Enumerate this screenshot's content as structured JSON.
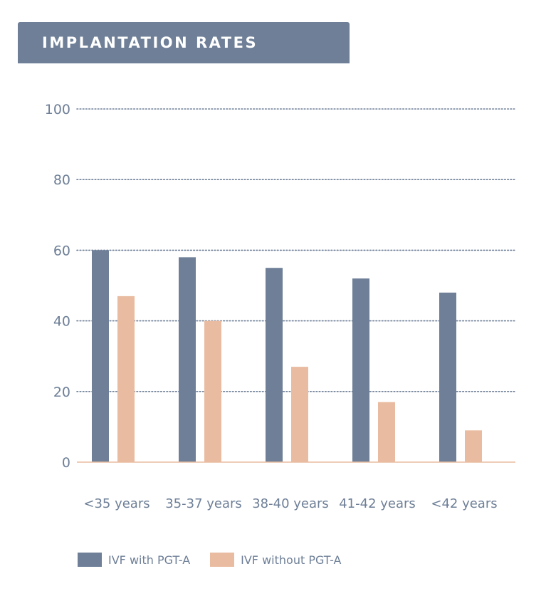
{
  "title": "IMPLANTATION RATES",
  "colors": {
    "with": "#6e7f97",
    "without": "#e9bca1",
    "grid": "#6e7f97",
    "baseline": "#e9bca1",
    "text": "#6e7f97"
  },
  "chart_data": {
    "type": "bar",
    "title": "IMPLANTATION RATES",
    "xlabel": "",
    "ylabel": "",
    "ylim": [
      0,
      100
    ],
    "yticks": [
      0,
      20,
      40,
      60,
      80,
      100
    ],
    "grid": true,
    "legend_position": "bottom-left",
    "categories": [
      "<35 years",
      "35-37 years",
      "38-40 years",
      "41-42 years",
      "<42 years"
    ],
    "series": [
      {
        "name": "IVF with PGT-A",
        "color": "#6e7f97",
        "values": [
          60,
          58,
          55,
          52,
          48
        ]
      },
      {
        "name": "IVF without PGT-A",
        "color": "#e9bca1",
        "values": [
          47,
          40,
          27,
          17,
          9
        ]
      }
    ]
  }
}
